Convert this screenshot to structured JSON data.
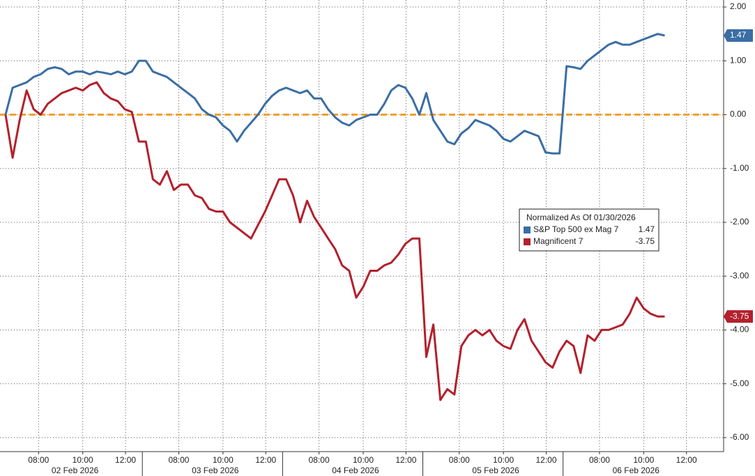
{
  "chart_data": {
    "type": "line",
    "legend_title": "Normalized As Of 01/30/2026",
    "series": [
      {
        "name": "S&P Top 500 ex Mag 7",
        "color": "#3a6ea5",
        "values": [
          0.0,
          0.5,
          0.55,
          0.6,
          0.7,
          0.75,
          0.85,
          0.88,
          0.85,
          0.75,
          0.8,
          0.8,
          0.75,
          0.8,
          0.78,
          0.75,
          0.8,
          0.75,
          0.8,
          1.0,
          1.0,
          0.8,
          0.75,
          0.7,
          0.6,
          0.5,
          0.4,
          0.3,
          0.1,
          0.0,
          -0.05,
          -0.2,
          -0.3,
          -0.5,
          -0.3,
          -0.15,
          0.0,
          0.2,
          0.35,
          0.45,
          0.5,
          0.45,
          0.4,
          0.45,
          0.3,
          0.3,
          0.1,
          -0.05,
          -0.15,
          -0.2,
          -0.1,
          -0.05,
          0.0,
          0.0,
          0.2,
          0.45,
          0.55,
          0.5,
          0.3,
          0.0,
          0.4,
          -0.1,
          -0.3,
          -0.5,
          -0.55,
          -0.35,
          -0.25,
          -0.1,
          -0.15,
          -0.2,
          -0.3,
          -0.45,
          -0.5,
          -0.4,
          -0.3,
          -0.35,
          -0.4,
          -0.7,
          -0.72,
          -0.72,
          0.9,
          0.88,
          0.85,
          1.0,
          1.1,
          1.2,
          1.3,
          1.35,
          1.3,
          1.3,
          1.35,
          1.4,
          1.45,
          1.5,
          1.47
        ]
      },
      {
        "name": "Magnificent 7",
        "color": "#b3202c",
        "values": [
          0.0,
          -0.8,
          -0.1,
          0.45,
          0.1,
          0.0,
          0.2,
          0.3,
          0.4,
          0.45,
          0.5,
          0.45,
          0.55,
          0.6,
          0.4,
          0.3,
          0.25,
          0.1,
          0.05,
          -0.5,
          -0.5,
          -1.2,
          -1.3,
          -1.05,
          -1.4,
          -1.3,
          -1.3,
          -1.5,
          -1.55,
          -1.75,
          -1.8,
          -1.8,
          -2.0,
          -2.1,
          -2.2,
          -2.3,
          -2.05,
          -1.8,
          -1.5,
          -1.2,
          -1.2,
          -1.5,
          -2.0,
          -1.6,
          -1.9,
          -2.1,
          -2.3,
          -2.5,
          -2.8,
          -2.9,
          -3.4,
          -3.2,
          -2.9,
          -2.9,
          -2.8,
          -2.75,
          -2.6,
          -2.4,
          -2.3,
          -2.3,
          -4.5,
          -3.9,
          -5.3,
          -5.1,
          -5.2,
          -4.3,
          -4.1,
          -4.0,
          -4.1,
          -4.0,
          -4.2,
          -4.3,
          -4.35,
          -4.0,
          -3.8,
          -4.2,
          -4.4,
          -4.6,
          -4.7,
          -4.4,
          -4.2,
          -4.3,
          -4.8,
          -4.1,
          -4.2,
          -4.0,
          -4.0,
          -3.95,
          -3.9,
          -3.7,
          -3.4,
          -3.6,
          -3.7,
          -3.75,
          -3.75
        ]
      }
    ],
    "hline": {
      "value": 0,
      "color": "#f0a030"
    },
    "xlim": [
      -0.8,
      102.4
    ],
    "ylim": [
      -6.26,
      2.13
    ],
    "yticks": [
      {
        "value": 2,
        "label": "2.00"
      },
      {
        "value": 1,
        "label": "1.00"
      },
      {
        "value": 0,
        "label": "0.00"
      },
      {
        "value": -1,
        "label": "-1.00"
      },
      {
        "value": -2,
        "label": "-2.00"
      },
      {
        "value": -3,
        "label": "-3.00"
      },
      {
        "value": -4,
        "label": "-4.00"
      },
      {
        "value": -5,
        "label": "-5.00"
      },
      {
        "value": -6,
        "label": "-6.00"
      }
    ],
    "xticks": [
      {
        "value": 4.7,
        "label": "08:00"
      },
      {
        "value": 11,
        "label": "10:00"
      },
      {
        "value": 17.1,
        "label": "12:00"
      },
      {
        "value": 24.7,
        "label": "08:00"
      },
      {
        "value": 31,
        "label": "10:00"
      },
      {
        "value": 37.1,
        "label": "12:00"
      },
      {
        "value": 44.7,
        "label": "08:00"
      },
      {
        "value": 51,
        "label": "10:00"
      },
      {
        "value": 57.1,
        "label": "12:00"
      },
      {
        "value": 64.7,
        "label": "08:00"
      },
      {
        "value": 71,
        "label": "10:00"
      },
      {
        "value": 77.1,
        "label": "12:00"
      },
      {
        "value": 84.7,
        "label": "08:00"
      },
      {
        "value": 91,
        "label": "10:00"
      },
      {
        "value": 97.1,
        "label": "12:00"
      }
    ],
    "day_labels": [
      {
        "value": 9.9,
        "label": "02 Feb 2026"
      },
      {
        "value": 29.9,
        "label": "03 Feb 2026"
      },
      {
        "value": 49.9,
        "label": "04 Feb 2026"
      },
      {
        "value": 69.9,
        "label": "05 Feb 2026"
      },
      {
        "value": 89.9,
        "label": "06 Feb 2026"
      }
    ],
    "grid": true
  }
}
